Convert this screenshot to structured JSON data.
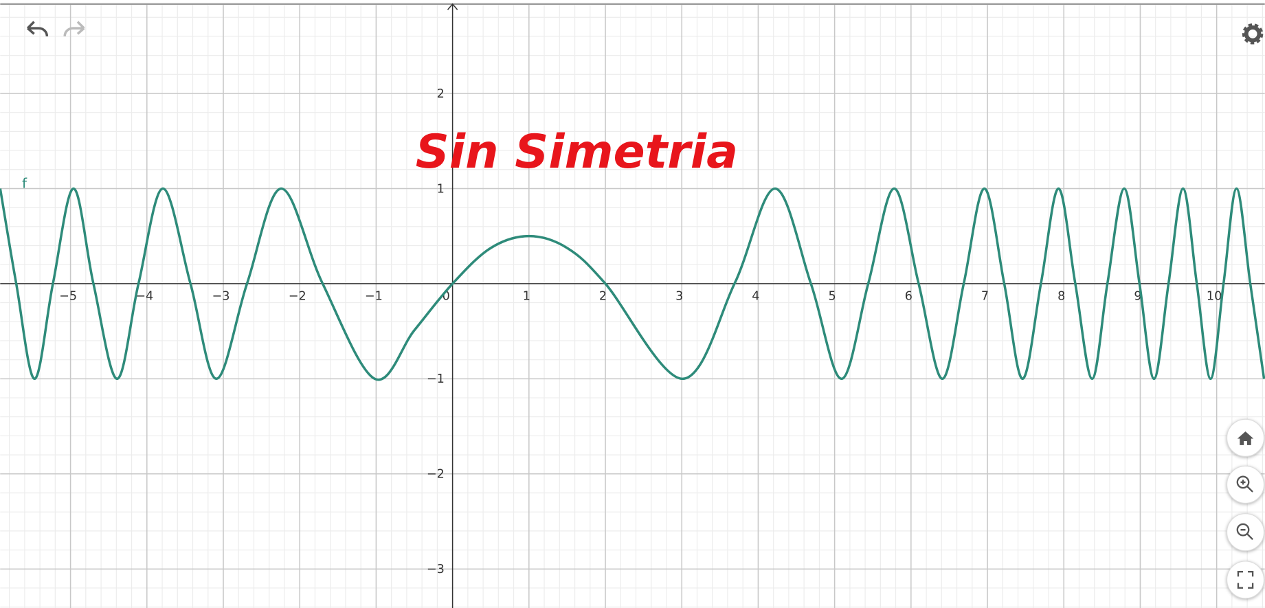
{
  "chart_data": {
    "type": "line",
    "annotation": "Sin Simetria",
    "x": [
      -5.92,
      -5.71,
      -5.47,
      -5.23,
      -4.96,
      -4.7,
      -4.39,
      -4.11,
      -3.79,
      -3.43,
      -3.09,
      -2.69,
      -2.24,
      -1.7,
      -1.02,
      -0.5,
      0,
      0.5,
      1,
      1.5,
      2,
      3.01,
      3.69,
      4.22,
      4.69,
      5.09,
      5.44,
      5.78,
      6.1,
      6.41,
      6.69,
      6.96,
      7.22,
      7.46,
      7.7,
      7.93,
      8.15,
      8.37,
      8.57,
      8.79,
      8.99,
      9.18,
      9.37,
      9.56,
      9.74,
      9.92,
      10.09,
      10.26,
      10.44,
      10.62
    ],
    "series": [
      {
        "name": "f",
        "color": "#2e8b7a",
        "values": [
          1,
          0,
          -1,
          0,
          1,
          0,
          -1,
          0,
          1,
          0,
          -1,
          0,
          1,
          0,
          -1,
          -0.49,
          0,
          0.375,
          0.5,
          0.375,
          0,
          -1,
          0,
          1,
          0,
          -1,
          0,
          1,
          0,
          -1,
          0,
          1,
          0,
          -1,
          0,
          1,
          0,
          -1,
          0,
          1,
          0,
          -1,
          0,
          1,
          0,
          -1,
          0,
          1,
          0,
          -1
        ]
      }
    ],
    "xlim": [
      -5.92,
      10.63
    ],
    "ylim": [
      -3.41,
      2.94
    ],
    "xticks": [
      {
        "value": -5,
        "label": "−5"
      },
      {
        "value": -4,
        "label": "−4"
      },
      {
        "value": -3,
        "label": "−3"
      },
      {
        "value": -2,
        "label": "−2"
      },
      {
        "value": -1,
        "label": "−1"
      },
      0,
      1,
      2,
      3,
      4,
      5,
      6,
      7,
      8,
      9,
      10
    ],
    "yticks": [
      {
        "value": -3,
        "label": "−3"
      },
      {
        "value": -2,
        "label": "−2"
      },
      {
        "value": -1,
        "label": "−1"
      },
      1,
      2
    ],
    "grid": true,
    "minor_grid_divisions": 5
  }
}
